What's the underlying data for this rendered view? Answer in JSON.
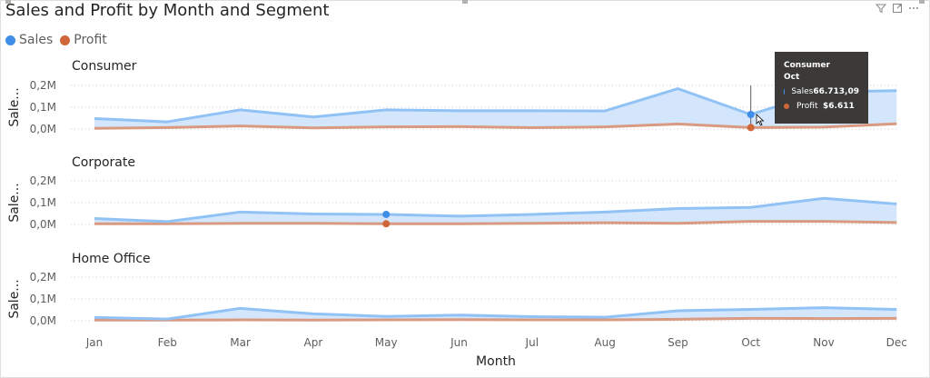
{
  "title": "Sales and Profit by Month and Segment",
  "header_icons": [
    "filter-icon",
    "focus-mode-icon",
    "more-options-icon"
  ],
  "legend": [
    {
      "label": "Sales",
      "color": "#3f8ee8"
    },
    {
      "label": "Profit",
      "color": "#d0673b"
    }
  ],
  "tooltip": {
    "segment": "Consumer",
    "month": "Oct",
    "rows": [
      {
        "name": "Sales",
        "value": "66.713,09",
        "color": "#3f8ee8"
      },
      {
        "name": "Profit",
        "value": "$6.611",
        "color": "#d0673b"
      }
    ]
  },
  "chart_data": {
    "type": "area",
    "x": [
      "Jan",
      "Feb",
      "Mar",
      "Apr",
      "May",
      "Jun",
      "Jul",
      "Aug",
      "Sep",
      "Oct",
      "Nov",
      "Dec"
    ],
    "xlabel": "Month",
    "ylabel": "Sale...",
    "yticks": [
      "0,0M",
      "0,1M",
      "0,2M"
    ],
    "ylim": [
      0,
      200000
    ],
    "grid": true,
    "legend_position": "top-left",
    "series_colors": {
      "Sales": "#91c2f5",
      "Profit": "#d99a82",
      "area": "#cfe3fb"
    },
    "panels": [
      {
        "name": "Consumer",
        "series": [
          {
            "name": "Sales",
            "values": [
              48000,
              33000,
              88000,
              55000,
              88000,
              84000,
              84000,
              83000,
              185000,
              66713,
              170000,
              176000
            ]
          },
          {
            "name": "Profit",
            "values": [
              3000,
              7000,
              14000,
              5000,
              10000,
              11000,
              6000,
              10000,
              23000,
              6611,
              9000,
              24000
            ]
          }
        ]
      },
      {
        "name": "Corporate",
        "series": [
          {
            "name": "Sales",
            "values": [
              27000,
              13000,
              57000,
              48000,
              46000,
              38000,
              46000,
              57000,
              73000,
              78000,
              120000,
              94000
            ]
          },
          {
            "name": "Profit",
            "values": [
              3000,
              3000,
              5000,
              5000,
              3000,
              3000,
              5000,
              8000,
              5000,
              14000,
              14000,
              9000
            ]
          }
        ]
      },
      {
        "name": "Home Office",
        "series": [
          {
            "name": "Sales",
            "values": [
              15000,
              8000,
              57000,
              32000,
              20000,
              26000,
              19000,
              16000,
              46000,
              52000,
              60000,
              52000
            ]
          },
          {
            "name": "Profit",
            "values": [
              3000,
              3000,
              4000,
              3000,
              4000,
              5000,
              4000,
              4000,
              7000,
              11000,
              10000,
              11000
            ]
          }
        ]
      }
    ],
    "highlight": [
      {
        "panel": 0,
        "index": 9,
        "guide": true
      },
      {
        "panel": 1,
        "index": 4,
        "guide": false
      }
    ]
  }
}
